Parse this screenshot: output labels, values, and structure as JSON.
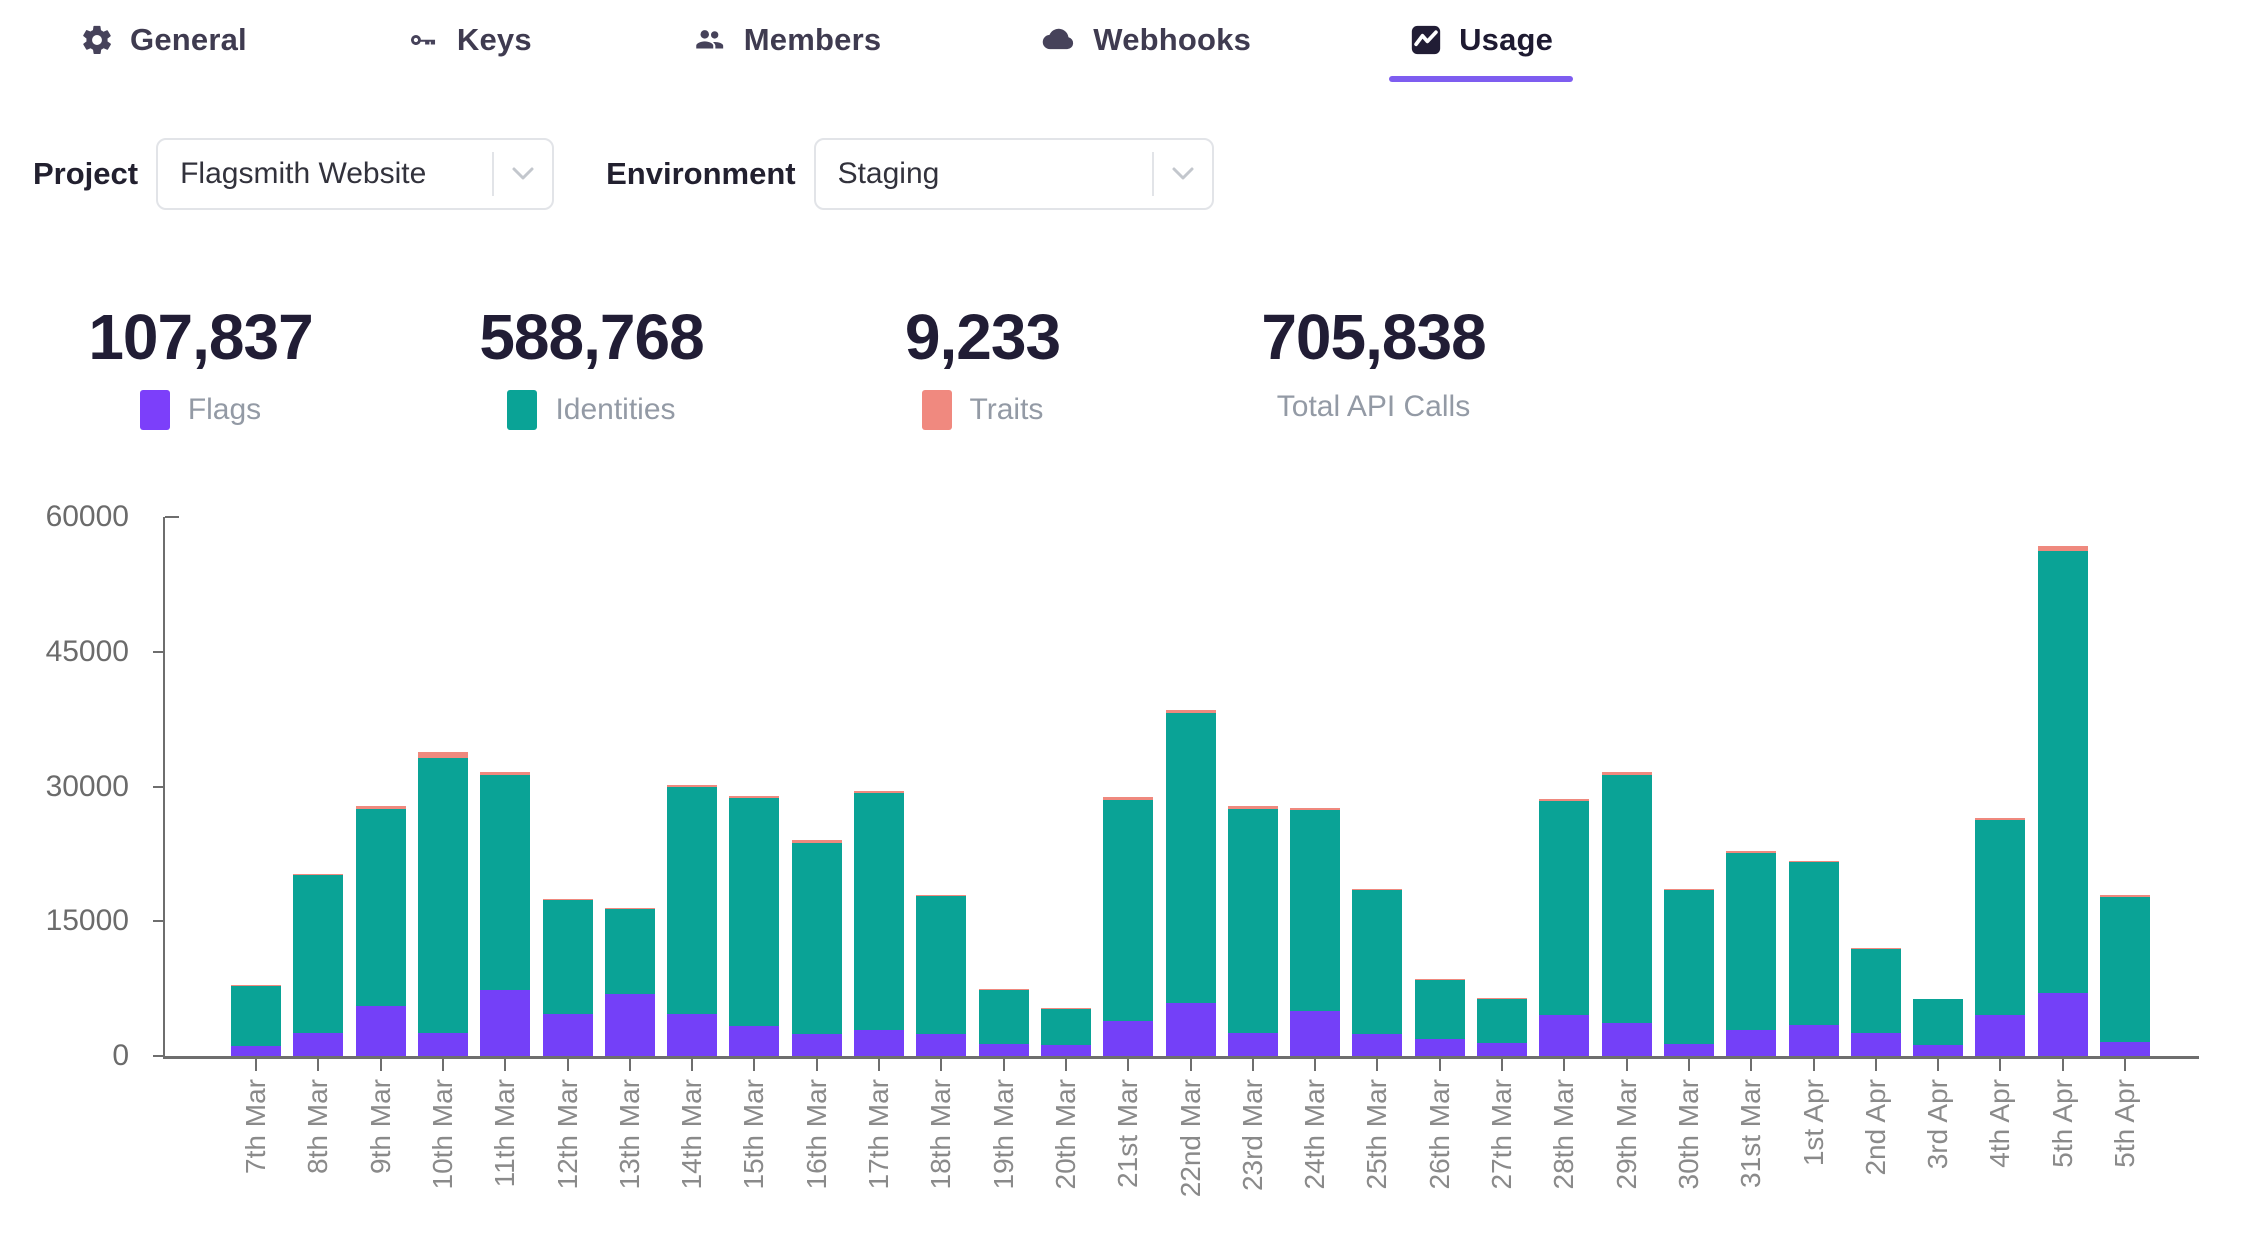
{
  "tabs": [
    {
      "label": "General",
      "icon": "gear-icon",
      "active": false
    },
    {
      "label": "Keys",
      "icon": "key-icon",
      "active": false
    },
    {
      "label": "Members",
      "icon": "members-icon",
      "active": false
    },
    {
      "label": "Webhooks",
      "icon": "cloud-icon",
      "active": false
    },
    {
      "label": "Usage",
      "icon": "usage-chart-icon",
      "active": true
    }
  ],
  "controls": {
    "project_label": "Project",
    "project_value": "Flagsmith Website",
    "environment_label": "Environment",
    "environment_value": "Staging"
  },
  "stats": [
    {
      "value": "107,837",
      "label": "Flags",
      "swatch": "#7c3ffa"
    },
    {
      "value": "588,768",
      "label": "Identities",
      "swatch": "#0aa396"
    },
    {
      "value": "9,233",
      "label": "Traits",
      "swatch": "#f0897f"
    },
    {
      "value": "705,838",
      "label": "Total API Calls",
      "swatch": null
    }
  ],
  "colors": {
    "flags": "#7440f8",
    "identities": "#0aa396",
    "traits": "#ef897e",
    "accent_underline": "#7e5df0",
    "axis": "#6e6e6e"
  },
  "chart_data": {
    "type": "bar",
    "stacked": true,
    "title": "",
    "xlabel": "",
    "ylabel": "",
    "ylim": [
      0,
      60000
    ],
    "yticks": [
      0,
      15000,
      30000,
      45000,
      60000
    ],
    "grid": false,
    "legend_position": "none",
    "categories": [
      "7th Mar",
      "8th Mar",
      "9th Mar",
      "10th Mar",
      "11th Mar",
      "12th Mar",
      "13th Mar",
      "14th Mar",
      "15th Mar",
      "16th Mar",
      "17th Mar",
      "18th Mar",
      "19th Mar",
      "20th Mar",
      "21st Mar",
      "22nd Mar",
      "23rd Mar",
      "24th Mar",
      "25th Mar",
      "26th Mar",
      "27th Mar",
      "28th Mar",
      "29th Mar",
      "30th Mar",
      "31st Mar",
      "1st Apr",
      "2nd Apr",
      "3rd Apr",
      "4th Apr",
      "5th Apr",
      "5th Apr"
    ],
    "series": [
      {
        "name": "Flags",
        "color": "#7440f8",
        "values": [
          1100,
          2550,
          5550,
          2600,
          7400,
          4700,
          6900,
          4700,
          3300,
          2400,
          2900,
          2400,
          1300,
          1200,
          3900,
          5900,
          2600,
          5000,
          2400,
          1900,
          1400,
          4600,
          3700,
          1300,
          2900,
          3500,
          2600,
          1200,
          4600,
          7000,
          1600
        ]
      },
      {
        "name": "Identities",
        "color": "#0aa396",
        "values": [
          6650,
          17550,
          22000,
          30600,
          23900,
          12650,
          9500,
          25250,
          25450,
          21350,
          26400,
          15400,
          6100,
          4000,
          24650,
          32250,
          24950,
          22350,
          16050,
          6600,
          5000,
          23750,
          27550,
          17150,
          19750,
          18050,
          9300,
          5100,
          21650,
          49200,
          16150
        ]
      },
      {
        "name": "Traits",
        "color": "#ef897e",
        "values": [
          150,
          200,
          250,
          600,
          300,
          150,
          100,
          250,
          250,
          250,
          200,
          100,
          100,
          100,
          250,
          350,
          250,
          250,
          150,
          100,
          100,
          250,
          350,
          150,
          150,
          150,
          100,
          100,
          250,
          600,
          150
        ]
      }
    ]
  }
}
